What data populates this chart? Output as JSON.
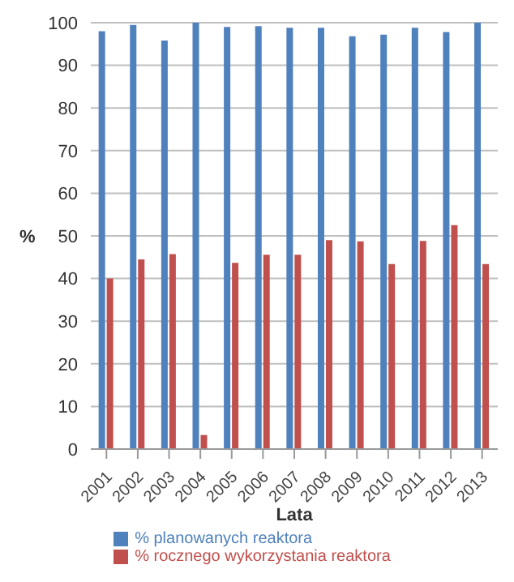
{
  "chart_data": {
    "type": "bar",
    "xlabel": "Lata",
    "ylabel": "%",
    "categories": [
      "2001",
      "2002",
      "2003",
      "2004",
      "2005",
      "2006",
      "2007",
      "2008",
      "2009",
      "2010",
      "2011",
      "2012",
      "2013"
    ],
    "series": [
      {
        "name": "% planowanych reaktora",
        "color": "#4f81bd",
        "values": [
          98,
          99.5,
          95.8,
          100,
          99,
          99.2,
          98.8,
          98.8,
          96.8,
          97.2,
          98.8,
          97.8,
          100
        ]
      },
      {
        "name": "% rocznego wykorzystania reaktora",
        "color": "#c0504d",
        "values": [
          40,
          44.5,
          45.7,
          3.3,
          43.7,
          45.6,
          45.6,
          49,
          48.7,
          43.4,
          48.8,
          52.5,
          43.4
        ]
      }
    ],
    "ylim": [
      0,
      100
    ],
    "yticks": [
      0,
      10,
      20,
      30,
      40,
      50,
      60,
      70,
      80,
      90,
      100
    ],
    "grid": "y",
    "legend": "bottom"
  }
}
